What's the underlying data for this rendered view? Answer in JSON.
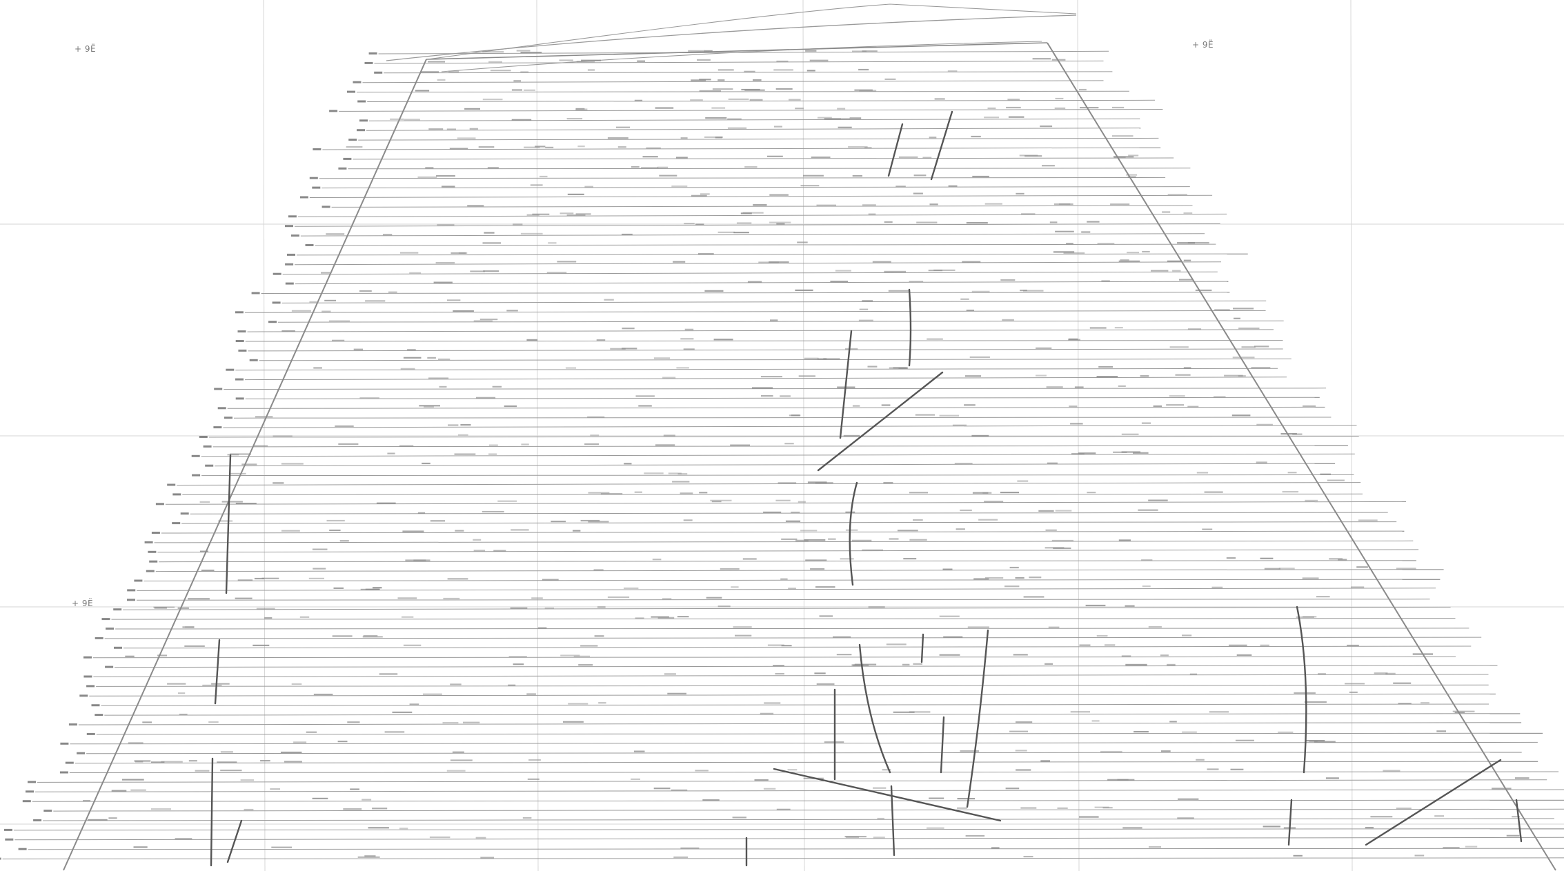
{
  "map": {
    "corner_labels": {
      "top_left": "+ 9Ë",
      "top_right": "+ 9Ë",
      "bottom_left": "+ 9Ë"
    },
    "colors": {
      "background": "#ffffff",
      "graticule": "#d6d6d6",
      "survey_line": "#9a9a9a",
      "boundary": "#8a8a8a",
      "feature_line": "#555555",
      "annotation": "#8e8e8e"
    },
    "line_count": 86
  }
}
